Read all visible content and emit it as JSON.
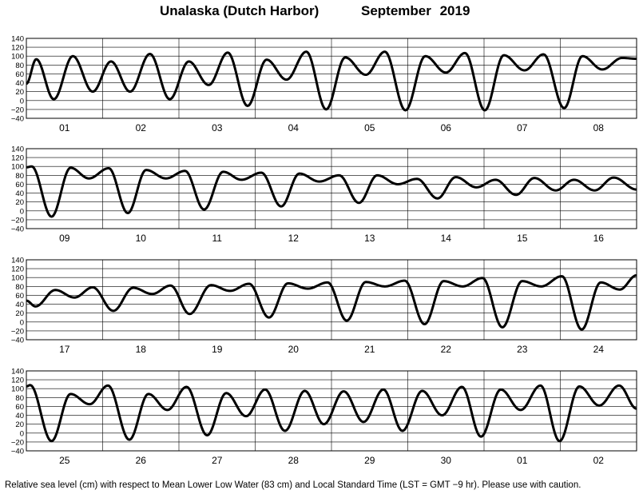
{
  "header": {
    "station": "Unalaska (Dutch Harbor)",
    "period": "September 2019"
  },
  "footer": {
    "caption": "Relative sea level (cm) with respect to Mean Lower Low Water (83 cm) and Local Standard Time (LST = GMT −9 hr). Please use with caution."
  },
  "chart_data": [
    {
      "type": "line",
      "ylim": [
        -40,
        140
      ],
      "yticks": [
        "−40",
        "−20",
        "0",
        "20",
        "40",
        "60",
        "80",
        "100",
        "120",
        "140"
      ],
      "grid": true,
      "categories": [
        "01",
        "02",
        "03",
        "04",
        "05",
        "06",
        "07",
        "08"
      ],
      "series": [
        {
          "x_days": [
            0.0,
            0.13,
            0.36,
            0.61,
            0.87,
            1.11,
            1.36,
            1.62,
            1.88,
            2.13,
            2.39,
            2.64,
            2.9,
            3.15,
            3.41,
            3.67,
            3.93,
            4.18,
            4.45,
            4.7,
            4.97,
            5.23,
            5.5,
            5.75,
            6.01,
            6.26,
            6.53,
            6.78,
            7.05,
            7.29,
            7.55,
            7.81,
            8.0
          ],
          "y_cm": [
            38,
            93,
            3,
            100,
            20,
            88,
            20,
            105,
            3,
            88,
            35,
            108,
            -12,
            92,
            47,
            110,
            -20,
            97,
            58,
            110,
            -22,
            100,
            63,
            107,
            -22,
            102,
            68,
            104,
            -17,
            100,
            70,
            96,
            94
          ]
        }
      ]
    },
    {
      "type": "line",
      "ylim": [
        -40,
        140
      ],
      "yticks": [
        "−40",
        "−20",
        "0",
        "20",
        "40",
        "60",
        "80",
        "100",
        "120",
        "140"
      ],
      "grid": true,
      "categories": [
        "09",
        "10",
        "11",
        "12",
        "13",
        "14",
        "15",
        "16"
      ],
      "series": [
        {
          "x_days": [
            0.0,
            0.07,
            0.33,
            0.58,
            0.82,
            1.08,
            1.33,
            1.57,
            1.83,
            2.08,
            2.33,
            2.58,
            2.82,
            3.08,
            3.34,
            3.58,
            3.84,
            4.1,
            4.36,
            4.6,
            4.87,
            5.12,
            5.39,
            5.63,
            5.9,
            6.15,
            6.42,
            6.66,
            6.94,
            7.18,
            7.45,
            7.7,
            8.0
          ],
          "y_cm": [
            98,
            100,
            -13,
            97,
            73,
            96,
            -5,
            92,
            73,
            90,
            3,
            88,
            70,
            86,
            10,
            84,
            66,
            80,
            18,
            80,
            60,
            72,
            28,
            76,
            53,
            70,
            36,
            74,
            46,
            70,
            46,
            75,
            48
          ]
        }
      ]
    },
    {
      "type": "line",
      "ylim": [
        -40,
        140
      ],
      "yticks": [
        "−40",
        "−20",
        "0",
        "20",
        "40",
        "60",
        "80",
        "100",
        "120",
        "140"
      ],
      "grid": true,
      "categories": [
        "17",
        "18",
        "19",
        "20",
        "21",
        "22",
        "23",
        "24"
      ],
      "series": [
        {
          "x_days": [
            0.0,
            0.12,
            0.38,
            0.63,
            0.87,
            1.14,
            1.4,
            1.65,
            1.89,
            2.14,
            2.42,
            2.67,
            2.92,
            3.18,
            3.43,
            3.69,
            3.95,
            4.2,
            4.45,
            4.7,
            4.96,
            5.22,
            5.47,
            5.72,
            5.98,
            6.24,
            6.5,
            6.75,
            7.02,
            7.28,
            7.53,
            7.78,
            8.0
          ],
          "y_cm": [
            48,
            35,
            72,
            55,
            78,
            25,
            77,
            63,
            82,
            18,
            83,
            70,
            86,
            10,
            87,
            75,
            89,
            3,
            90,
            80,
            93,
            -5,
            92,
            80,
            99,
            -12,
            92,
            80,
            103,
            -17,
            89,
            73,
            105
          ]
        }
      ]
    },
    {
      "type": "line",
      "ylim": [
        -40,
        140
      ],
      "yticks": [
        "−40",
        "−20",
        "0",
        "20",
        "40",
        "60",
        "80",
        "100",
        "120",
        "140"
      ],
      "grid": true,
      "categories": [
        "25",
        "26",
        "27",
        "28",
        "29",
        "30",
        "01",
        "02"
      ],
      "series": [
        {
          "x_days": [
            0.0,
            0.05,
            0.33,
            0.58,
            0.83,
            1.07,
            1.35,
            1.6,
            1.85,
            2.1,
            2.37,
            2.62,
            2.88,
            3.13,
            3.39,
            3.65,
            3.9,
            4.16,
            4.42,
            4.68,
            4.93,
            5.19,
            5.45,
            5.71,
            5.96,
            6.22,
            6.48,
            6.74,
            6.99,
            7.25,
            7.51,
            7.77,
            8.0
          ],
          "y_cm": [
            105,
            108,
            -18,
            88,
            65,
            107,
            -15,
            88,
            52,
            104,
            -5,
            90,
            38,
            98,
            5,
            95,
            20,
            94,
            25,
            98,
            5,
            95,
            40,
            104,
            -8,
            98,
            52,
            107,
            -18,
            105,
            62,
            107,
            55
          ]
        }
      ]
    }
  ]
}
